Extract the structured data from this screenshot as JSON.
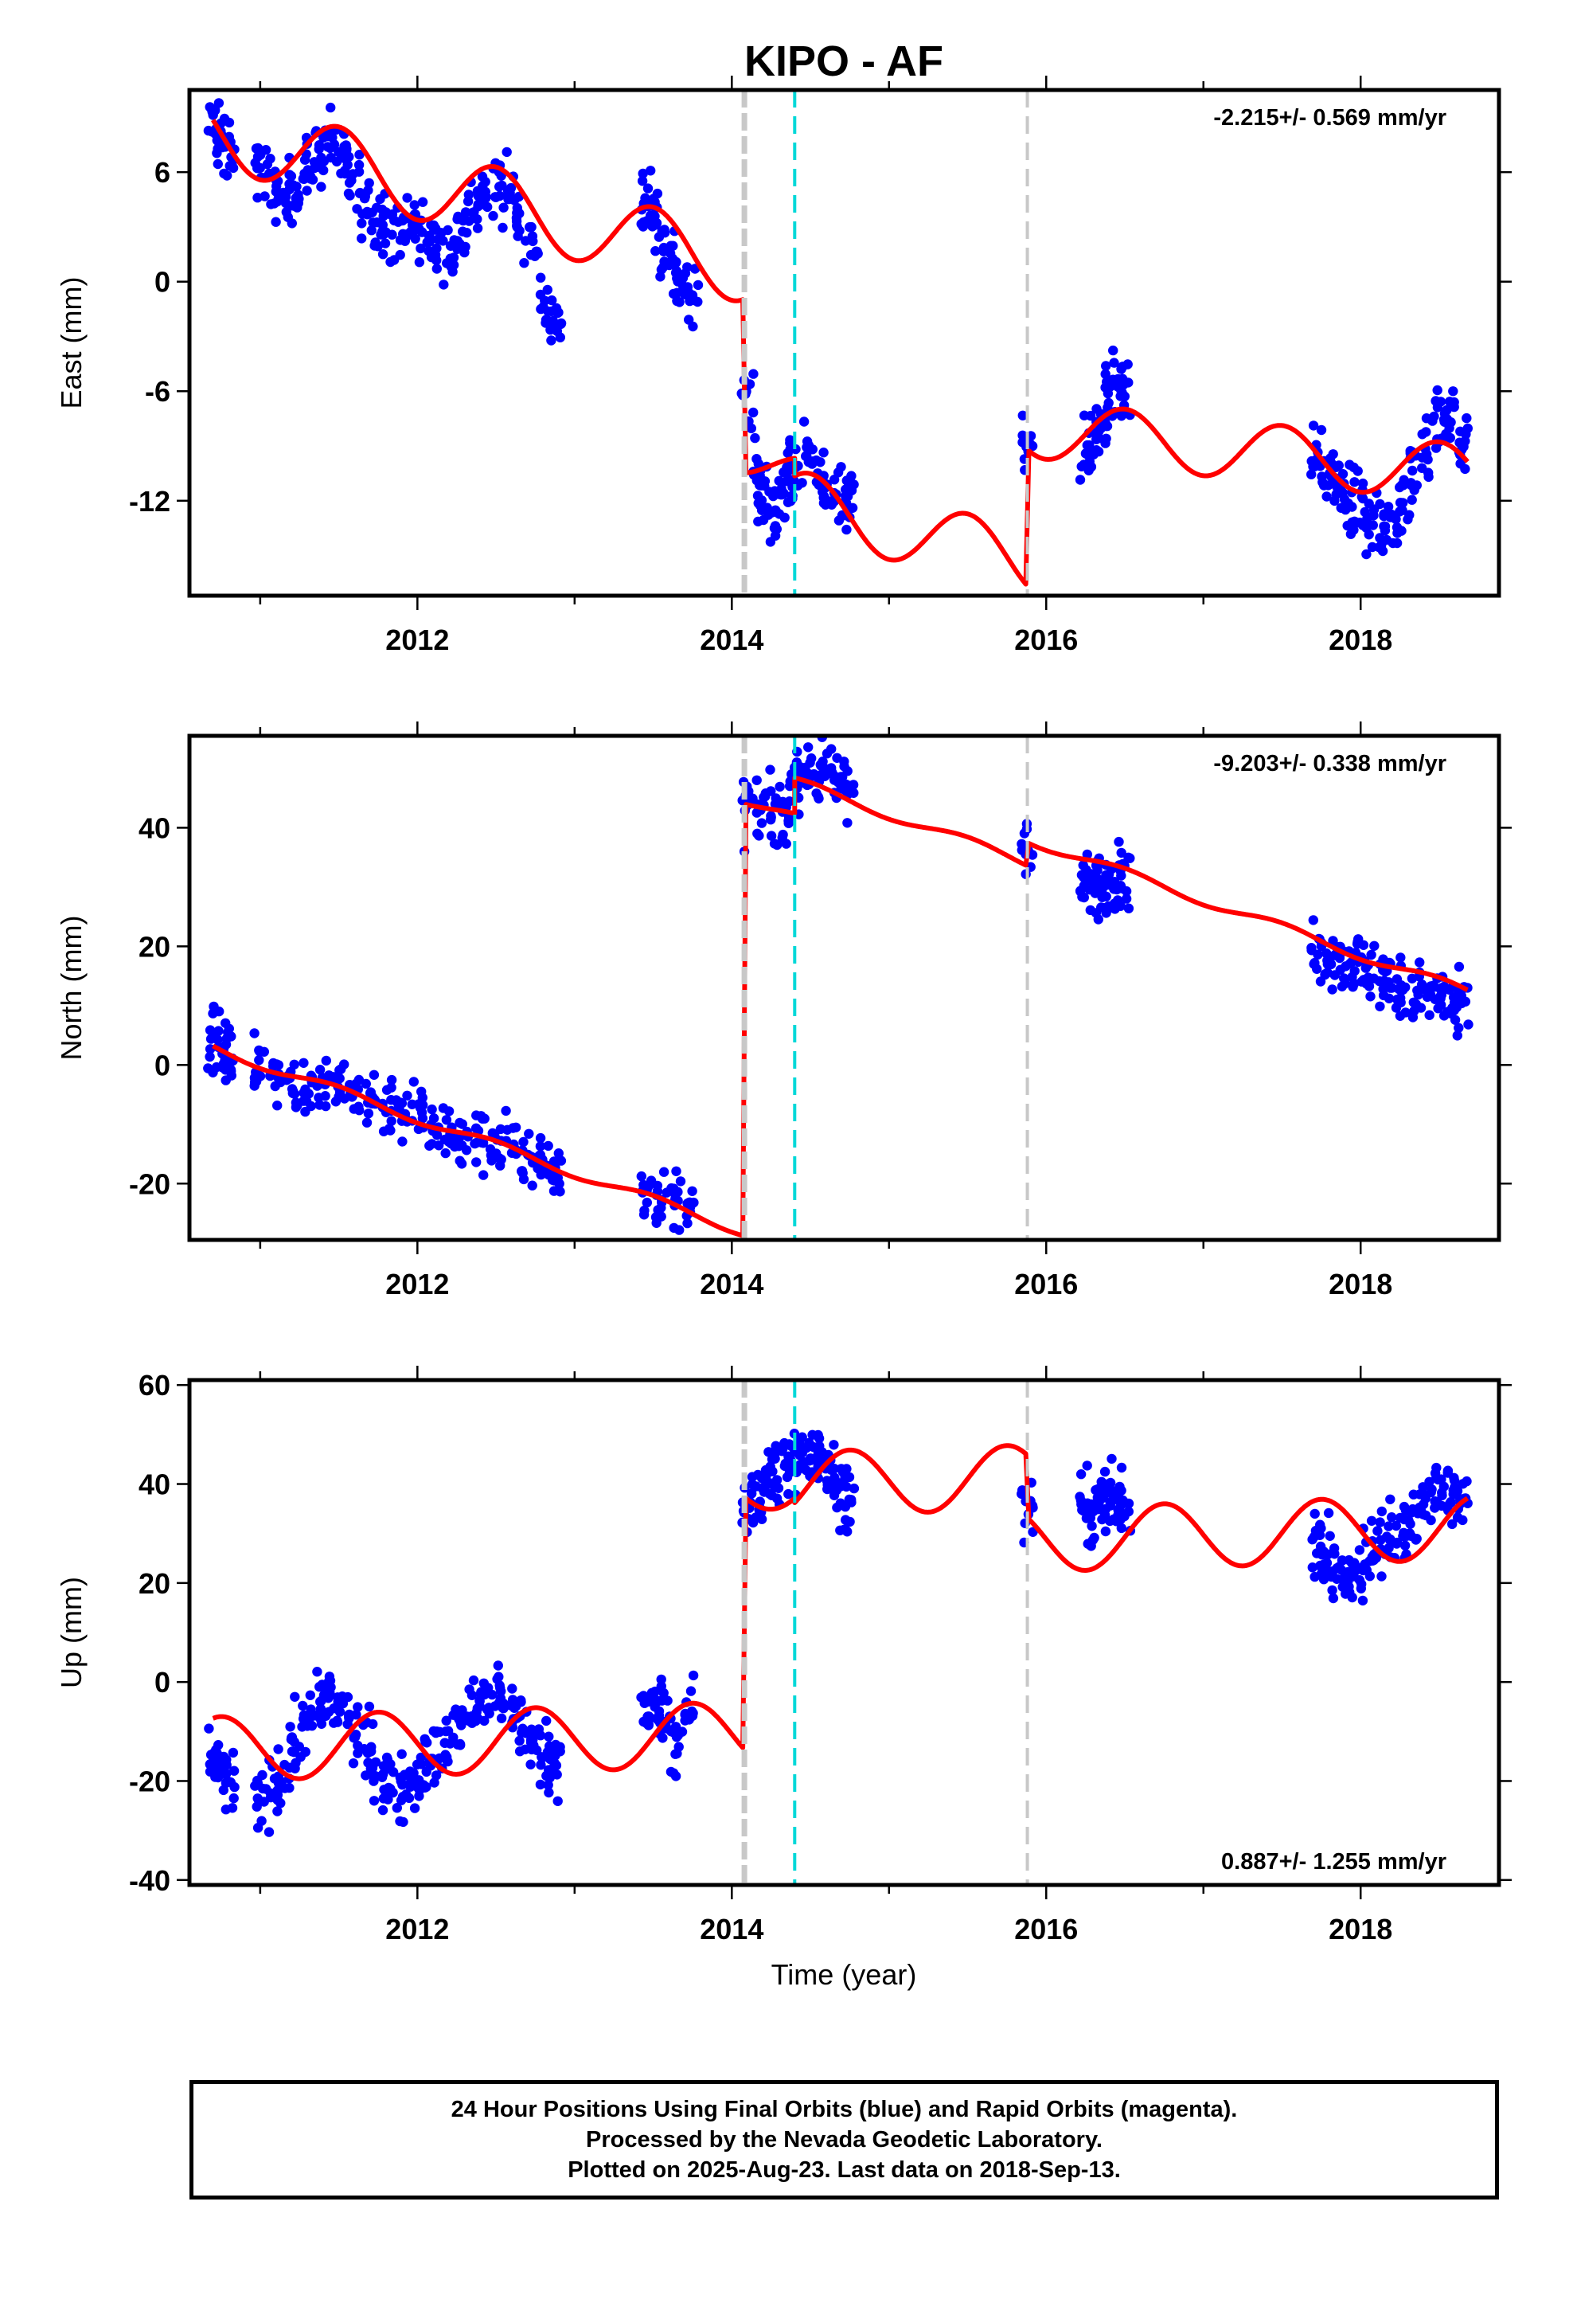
{
  "title": "KIPO - AF",
  "xlabel": "Time (year)",
  "footer": {
    "line1": "24 Hour Positions Using Final Orbits (blue) and Rapid Orbits (magenta).",
    "line2": "Processed by the Nevada Geodetic Laboratory.",
    "line3": "Plotted on 2025-Aug-23. Last data on 2018-Sep-13."
  },
  "colors": {
    "data": "#0000ff",
    "model": "#ff0000",
    "offset_gray": "#c8c8c8",
    "offset_cyan": "#00d8d8"
  },
  "chart_data": [
    {
      "type": "scatter",
      "panel": "east",
      "ylabel": "East (mm)",
      "rate_label": "-2.215+/- 0.569 mm/yr",
      "rate_position": "top-right",
      "xlim": [
        2010.55,
        2018.88
      ],
      "ylim": [
        -17.2,
        10.5
      ],
      "xticks": [
        2012,
        2014,
        2016,
        2018
      ],
      "yticks": [
        -12,
        -6,
        0,
        6
      ],
      "offsets": [
        {
          "x": 2014.08,
          "color": "gray",
          "style": "thick-dash"
        },
        {
          "x": 2014.4,
          "color": "cyan",
          "style": "dash"
        },
        {
          "x": 2015.88,
          "color": "gray",
          "style": "dash"
        }
      ],
      "model": {
        "name": "",
        "segments": [
          {
            "x0": 2010.7,
            "x1": 2014.07,
            "a": 4.5,
            "r": -2.2,
            "amp": 2.0,
            "phase_year": 2011.25,
            "anchor": 2012.4
          },
          {
            "x0": 2014.09,
            "x1": 2014.4,
            "a": -11.5,
            "r": -2.2,
            "amp": 0.9,
            "phase_year": 2011.25,
            "anchor": 2014.9
          },
          {
            "x0": 2014.4,
            "x1": 2015.87,
            "a": -13.2,
            "r": -2.2,
            "amp": 1.8,
            "phase_year": 2011.25,
            "anchor": 2014.9
          },
          {
            "x0": 2015.89,
            "x1": 2018.68,
            "a": -9.3,
            "r": -0.9,
            "amp": 1.6,
            "phase_year": 2011.25,
            "anchor": 2017.3
          }
        ]
      },
      "series": [
        {
          "name": "",
          "x": [
            2010.7,
            2010.75,
            2010.8,
            2011.0,
            2011.08,
            2011.15,
            2011.22,
            2011.3,
            2011.38,
            2011.45,
            2011.52,
            2011.6,
            2011.68,
            2011.75,
            2011.82,
            2011.9,
            2011.98,
            2012.05,
            2012.12,
            2012.2,
            2012.28,
            2012.35,
            2012.42,
            2012.5,
            2012.58,
            2012.66,
            2012.75,
            2012.82,
            2012.88,
            2013.45,
            2013.5,
            2013.55,
            2013.62,
            2013.68,
            2013.75,
            2014.1,
            2014.15,
            2014.2,
            2014.25,
            2014.3,
            2014.35,
            2014.4,
            2014.48,
            2014.55,
            2014.62,
            2014.7,
            2014.75,
            2015.88,
            2016.25,
            2016.3,
            2016.35,
            2016.4,
            2016.45,
            2016.5,
            2017.72,
            2017.78,
            2017.85,
            2017.92,
            2017.98,
            2018.05,
            2018.12,
            2018.2,
            2018.28,
            2018.35,
            2018.42,
            2018.5,
            2018.58,
            2018.65
          ],
          "y": [
            8.5,
            7.8,
            7.2,
            6.0,
            5.2,
            4.8,
            5.2,
            6.0,
            7.0,
            7.5,
            6.8,
            5.5,
            4.2,
            3.5,
            3.0,
            2.8,
            3.2,
            2.5,
            2.0,
            1.8,
            2.8,
            4.0,
            5.0,
            5.3,
            4.8,
            3.2,
            1.5,
            -1.2,
            -2.5,
            4.5,
            3.5,
            2.0,
            1.2,
            0.2,
            -1.0,
            -6.5,
            -10.5,
            -11.8,
            -12.8,
            -12.0,
            -11.2,
            -10.5,
            -9.8,
            -10.5,
            -11.8,
            -12.3,
            -12.0,
            -8.5,
            -9.5,
            -8.5,
            -7.5,
            -6.3,
            -5.2,
            -5.8,
            -9.8,
            -10.5,
            -11.2,
            -11.8,
            -12.5,
            -13.2,
            -13.5,
            -13.0,
            -12.0,
            -10.5,
            -9.0,
            -7.5,
            -7.8,
            -9.0
          ]
        }
      ]
    },
    {
      "type": "scatter",
      "panel": "north",
      "ylabel": "North (mm)",
      "rate_label": "-9.203+/- 0.338 mm/yr",
      "rate_position": "top-right",
      "xlim": [
        2010.55,
        2018.88
      ],
      "ylim": [
        -29.5,
        55.5
      ],
      "xticks": [
        2012,
        2014,
        2016,
        2018
      ],
      "yticks": [
        -20,
        0,
        20,
        40
      ],
      "offsets": [
        {
          "x": 2014.08,
          "color": "gray",
          "style": "thick-dash"
        },
        {
          "x": 2014.4,
          "color": "cyan",
          "style": "dash"
        },
        {
          "x": 2015.88,
          "color": "gray",
          "style": "dash"
        }
      ],
      "model": {
        "name": "",
        "segments": [
          {
            "x0": 2010.7,
            "x1": 2014.07,
            "a": -9.0,
            "r": -9.2,
            "amp": 0.8,
            "phase_year": 2011.25,
            "anchor": 2012.0
          },
          {
            "x0": 2014.09,
            "x1": 2014.4,
            "a": 39.0,
            "r": -9.2,
            "amp": 0.8,
            "phase_year": 2011.25,
            "anchor": 2014.7
          },
          {
            "x0": 2014.4,
            "x1": 2015.87,
            "a": 45.0,
            "r": -9.2,
            "amp": 0.8,
            "phase_year": 2011.25,
            "anchor": 2014.7
          },
          {
            "x0": 2015.89,
            "x1": 2018.68,
            "a": 25.0,
            "r": -9.2,
            "amp": 0.8,
            "phase_year": 2011.25,
            "anchor": 2017.3
          }
        ]
      },
      "series": [
        {
          "name": "",
          "x": [
            2010.7,
            2010.75,
            2010.8,
            2011.0,
            2011.1,
            2011.2,
            2011.3,
            2011.4,
            2011.5,
            2011.6,
            2011.7,
            2011.8,
            2011.9,
            2012.0,
            2012.1,
            2012.2,
            2012.3,
            2012.4,
            2012.5,
            2012.6,
            2012.7,
            2012.8,
            2012.88,
            2013.45,
            2013.55,
            2013.65,
            2013.75,
            2014.1,
            2014.18,
            2014.26,
            2014.34,
            2014.4,
            2014.45,
            2014.52,
            2014.6,
            2014.68,
            2014.75,
            2015.88,
            2016.25,
            2016.3,
            2016.35,
            2016.4,
            2016.45,
            2016.5,
            2017.72,
            2017.8,
            2017.88,
            2017.96,
            2018.04,
            2018.12,
            2018.2,
            2018.28,
            2018.36,
            2018.44,
            2018.52,
            2018.6,
            2018.65
          ],
          "y": [
            5.0,
            3.0,
            2.0,
            0.5,
            -1.5,
            -3.0,
            -3.5,
            -3.8,
            -4.0,
            -4.5,
            -5.5,
            -6.5,
            -7.5,
            -8.0,
            -10.0,
            -11.5,
            -12.5,
            -13.0,
            -13.2,
            -13.8,
            -15.0,
            -17.0,
            -18.5,
            -20.5,
            -21.5,
            -23.5,
            -25.0,
            43.0,
            42.5,
            42.0,
            42.5,
            48.0,
            50.0,
            49.5,
            48.5,
            48.0,
            47.5,
            36.0,
            30.0,
            30.5,
            31.0,
            31.5,
            31.2,
            31.0,
            20.0,
            19.0,
            18.0,
            17.0,
            16.0,
            15.0,
            14.0,
            13.0,
            12.0,
            11.5,
            11.0,
            10.0,
            9.0
          ]
        }
      ]
    },
    {
      "type": "scatter",
      "panel": "up",
      "ylabel": "Up (mm)",
      "rate_label": "0.887+/- 1.255 mm/yr",
      "rate_position": "bottom-right",
      "xlim": [
        2010.55,
        2018.88
      ],
      "ylim": [
        -41,
        61
      ],
      "xticks": [
        2012,
        2014,
        2016,
        2018
      ],
      "yticks": [
        -40,
        -20,
        0,
        20,
        40,
        60
      ],
      "offsets": [
        {
          "x": 2014.08,
          "color": "gray",
          "style": "thick-dash"
        },
        {
          "x": 2014.4,
          "color": "cyan",
          "style": "dash"
        },
        {
          "x": 2015.88,
          "color": "gray",
          "style": "dash"
        }
      ],
      "model": {
        "name": "",
        "segments": [
          {
            "x0": 2010.7,
            "x1": 2014.07,
            "a": -12.0,
            "r": 0.9,
            "amp": 6.5,
            "phase_year": 2011.5,
            "anchor": 2012.4
          },
          {
            "x0": 2014.09,
            "x1": 2014.4,
            "a": 40.5,
            "r": 0.9,
            "amp": 5.0,
            "phase_year": 2011.5,
            "anchor": 2014.9
          },
          {
            "x0": 2014.4,
            "x1": 2015.87,
            "a": 40.5,
            "r": 0.9,
            "amp": 6.5,
            "phase_year": 2011.5,
            "anchor": 2014.9
          },
          {
            "x0": 2015.89,
            "x1": 2018.68,
            "a": 30.0,
            "r": 0.9,
            "amp": 6.5,
            "phase_year": 2011.5,
            "anchor": 2017.3
          }
        ]
      },
      "series": [
        {
          "name": "",
          "x": [
            2010.7,
            2010.75,
            2010.8,
            2011.0,
            2011.08,
            2011.15,
            2011.22,
            2011.3,
            2011.38,
            2011.45,
            2011.52,
            2011.6,
            2011.68,
            2011.75,
            2011.82,
            2011.9,
            2011.98,
            2012.05,
            2012.12,
            2012.2,
            2012.28,
            2012.35,
            2012.42,
            2012.5,
            2012.58,
            2012.66,
            2012.75,
            2012.82,
            2012.88,
            2013.45,
            2013.52,
            2013.58,
            2013.65,
            2013.72,
            2014.1,
            2014.16,
            2014.22,
            2014.28,
            2014.34,
            2014.4,
            2014.46,
            2014.52,
            2014.58,
            2014.64,
            2014.7,
            2014.75,
            2015.88,
            2016.25,
            2016.3,
            2016.35,
            2016.4,
            2016.45,
            2016.5,
            2017.72,
            2017.78,
            2017.85,
            2017.92,
            2017.98,
            2018.05,
            2018.12,
            2018.2,
            2018.28,
            2018.35,
            2018.42,
            2018.5,
            2018.58,
            2018.65
          ],
          "y": [
            -15.0,
            -18.0,
            -20.0,
            -25.0,
            -22.0,
            -18.0,
            -12.0,
            -8.0,
            -5.0,
            -4.0,
            -6.0,
            -10.0,
            -14.0,
            -18.0,
            -20.0,
            -21.0,
            -19.0,
            -17.0,
            -15.0,
            -12.0,
            -9.0,
            -6.0,
            -3.0,
            -2.0,
            -5.0,
            -9.0,
            -12.0,
            -15.0,
            -16.0,
            -7.0,
            -5.0,
            -8.0,
            -12.0,
            -6.0,
            35.0,
            38.0,
            40.0,
            42.0,
            44.0,
            45.0,
            46.0,
            47.0,
            45.0,
            42.0,
            39.0,
            36.0,
            35.0,
            35.0,
            33.0,
            36.0,
            37.0,
            38.0,
            36.0,
            28.0,
            25.0,
            22.0,
            20.0,
            22.0,
            26.0,
            28.0,
            30.0,
            32.0,
            34.0,
            37.0,
            40.0,
            38.0,
            37.0
          ]
        }
      ]
    }
  ]
}
